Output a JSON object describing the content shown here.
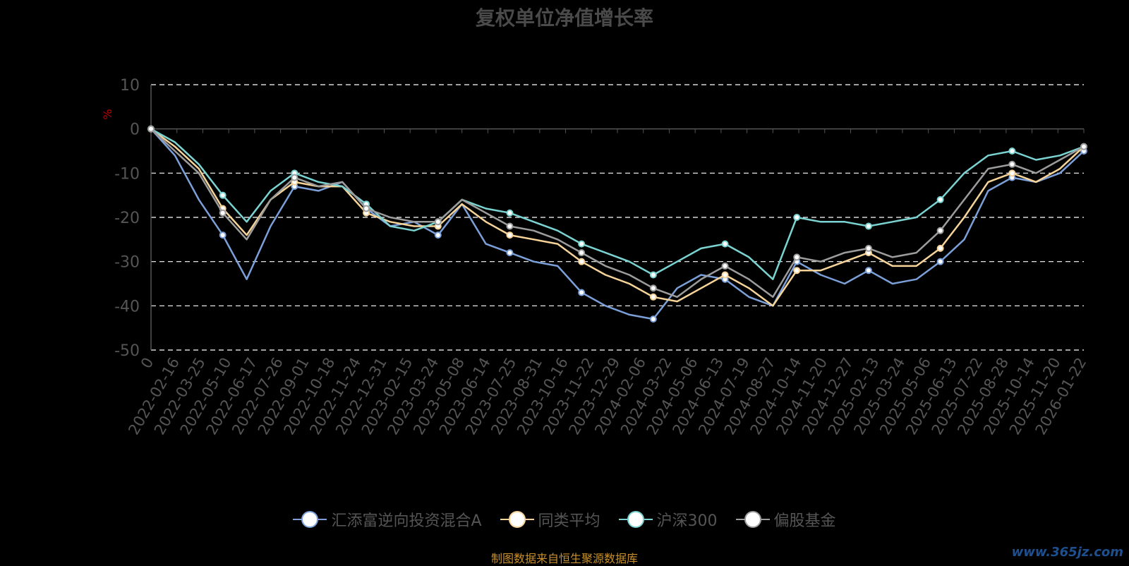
{
  "chart_data": {
    "type": "line",
    "title": "复权单位净值增长率",
    "ylabel": "%",
    "ylim": [
      -50,
      10
    ],
    "yticks": [
      10,
      0,
      -10,
      -20,
      -30,
      -40,
      -50
    ],
    "grid": true,
    "legend_placement": "bottom",
    "x_tick_labels": [
      "0",
      "2022-02-16",
      "2022-03-25",
      "2022-05-10",
      "2022-06-17",
      "2022-07-26",
      "2022-09-01",
      "2022-10-18",
      "2022-11-24",
      "2022-12-31",
      "2023-02-15",
      "2023-03-24",
      "2023-05-08",
      "2023-06-14",
      "2023-07-25",
      "2023-08-31",
      "2023-10-16",
      "2023-11-22",
      "2023-12-29",
      "2024-02-06",
      "2024-03-22",
      "2024-05-06",
      "2024-06-13",
      "2024-07-19",
      "2024-08-27",
      "2024-10-14",
      "2024-11-20",
      "2024-12-27",
      "2025-02-13",
      "2025-03-24",
      "2025-05-06",
      "2025-06-13",
      "2025-07-22",
      "2025-08-28",
      "2025-10-14",
      "2025-11-20",
      "2026-01-22"
    ],
    "series": [
      {
        "name": "汇添富逆向投资混合A",
        "color": "#7b9fd8",
        "values": [
          0,
          -6,
          -16,
          -24,
          -34,
          -22,
          -13,
          -14,
          -12,
          -18,
          -22,
          -21,
          -24,
          -17,
          -26,
          -28,
          -30,
          -31,
          -37,
          -40,
          -42,
          -43,
          -36,
          -33,
          -34,
          -38,
          -40,
          -30,
          -33,
          -35,
          -32,
          -35,
          -34,
          -30,
          -25,
          -14,
          -11,
          -12,
          -10,
          -5
        ]
      },
      {
        "name": "同类平均",
        "color": "#f6d398",
        "values": [
          0,
          -4,
          -9,
          -18,
          -24,
          -16,
          -12,
          -13,
          -13,
          -19,
          -21,
          -22,
          -22,
          -17,
          -21,
          -24,
          -25,
          -26,
          -30,
          -33,
          -35,
          -38,
          -39,
          -36,
          -33,
          -36,
          -40,
          -32,
          -32,
          -30,
          -28,
          -31,
          -31,
          -27,
          -20,
          -12,
          -10,
          -12,
          -9,
          -4
        ]
      },
      {
        "name": "沪深300",
        "color": "#7bd3d1",
        "values": [
          0,
          -3,
          -8,
          -15,
          -21,
          -14,
          -10,
          -12,
          -13,
          -17,
          -22,
          -23,
          -21,
          -16,
          -18,
          -19,
          -21,
          -23,
          -26,
          -28,
          -30,
          -33,
          -30,
          -27,
          -26,
          -29,
          -34,
          -20,
          -21,
          -21,
          -22,
          -21,
          -20,
          -16,
          -10,
          -6,
          -5,
          -7,
          -6,
          -4
        ]
      },
      {
        "name": "偏股基金",
        "color": "#9c9c9c",
        "values": [
          0,
          -5,
          -10,
          -19,
          -25,
          -16,
          -11,
          -13,
          -12,
          -18,
          -20,
          -21,
          -21,
          -16,
          -19,
          -22,
          -23,
          -25,
          -28,
          -31,
          -33,
          -36,
          -38,
          -34,
          -31,
          -34,
          -38,
          -29,
          -30,
          -28,
          -27,
          -29,
          -28,
          -23,
          -16,
          -9,
          -8,
          -10,
          -7,
          -4
        ]
      }
    ]
  },
  "source_note": "制图数据来自恒生聚源数据库",
  "watermark": "www.365jz.com"
}
